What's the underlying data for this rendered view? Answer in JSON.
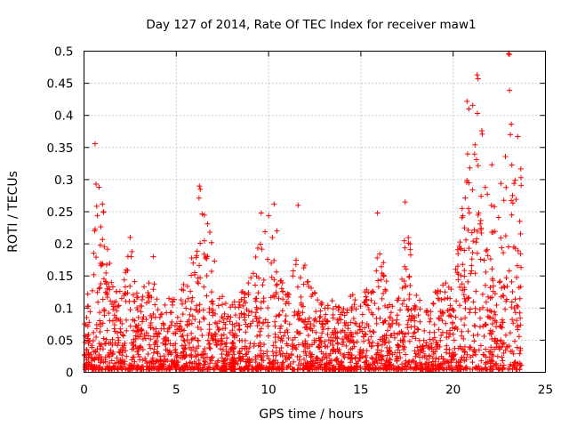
{
  "chart_data": {
    "type": "scatter",
    "title": "Day 127 of 2014, Rate Of TEC Index for receiver maw1",
    "xlabel": "GPS time / hours",
    "ylabel": "ROTI / TECUs",
    "xlim": [
      0,
      25
    ],
    "ylim": [
      0,
      0.5
    ],
    "x_ticks": [
      0,
      5,
      10,
      15,
      20,
      25
    ],
    "x_tick_labels": [
      "0",
      "5",
      "10",
      "15",
      "20",
      "25"
    ],
    "y_ticks": [
      0,
      0.05,
      0.1,
      0.15,
      0.2,
      0.25,
      0.3,
      0.35,
      0.4,
      0.45,
      0.5
    ],
    "y_tick_labels": [
      "0",
      "0.05",
      "0.1",
      "0.15",
      "0.2",
      "0.25",
      "0.3",
      "0.35",
      "0.4",
      "0.45",
      "0.5"
    ],
    "grid": true,
    "marker": "plus",
    "color": "#ff0000",
    "data_coverage": [
      0,
      23.7
    ],
    "envelope": [
      [
        0.0,
        0.1
      ],
      [
        0.5,
        0.18
      ],
      [
        0.7,
        0.3
      ],
      [
        1.0,
        0.26
      ],
      [
        1.5,
        0.14
      ],
      [
        2.0,
        0.12
      ],
      [
        2.5,
        0.2
      ],
      [
        3.0,
        0.12
      ],
      [
        3.5,
        0.14
      ],
      [
        4.0,
        0.13
      ],
      [
        4.5,
        0.12
      ],
      [
        5.0,
        0.11
      ],
      [
        5.5,
        0.14
      ],
      [
        6.0,
        0.2
      ],
      [
        6.3,
        0.29
      ],
      [
        6.7,
        0.24
      ],
      [
        7.0,
        0.18
      ],
      [
        7.5,
        0.12
      ],
      [
        8.0,
        0.1
      ],
      [
        8.5,
        0.12
      ],
      [
        9.0,
        0.14
      ],
      [
        9.5,
        0.2
      ],
      [
        10.0,
        0.25
      ],
      [
        10.5,
        0.17
      ],
      [
        11.0,
        0.12
      ],
      [
        11.5,
        0.22
      ],
      [
        12.0,
        0.16
      ],
      [
        12.5,
        0.12
      ],
      [
        13.0,
        0.1
      ],
      [
        13.5,
        0.11
      ],
      [
        14.0,
        0.1
      ],
      [
        14.5,
        0.12
      ],
      [
        15.0,
        0.11
      ],
      [
        15.5,
        0.14
      ],
      [
        16.0,
        0.22
      ],
      [
        16.5,
        0.12
      ],
      [
        17.0,
        0.11
      ],
      [
        17.5,
        0.24
      ],
      [
        18.0,
        0.12
      ],
      [
        18.5,
        0.1
      ],
      [
        19.0,
        0.12
      ],
      [
        19.5,
        0.14
      ],
      [
        20.0,
        0.14
      ],
      [
        20.5,
        0.26
      ],
      [
        21.0,
        0.42
      ],
      [
        21.3,
        0.46
      ],
      [
        21.8,
        0.3
      ],
      [
        22.2,
        0.25
      ],
      [
        22.6,
        0.3
      ],
      [
        23.0,
        0.5
      ],
      [
        23.4,
        0.35
      ],
      [
        23.7,
        0.33
      ]
    ],
    "outliers": [
      [
        0.6,
        0.356
      ],
      [
        0.65,
        0.293
      ],
      [
        1.0,
        0.262
      ],
      [
        1.05,
        0.25
      ],
      [
        2.5,
        0.21
      ],
      [
        2.55,
        0.18
      ],
      [
        3.75,
        0.18
      ],
      [
        6.25,
        0.29
      ],
      [
        6.3,
        0.285
      ],
      [
        9.6,
        0.248
      ],
      [
        10.3,
        0.262
      ],
      [
        10.45,
        0.22
      ],
      [
        11.6,
        0.26
      ],
      [
        15.9,
        0.248
      ],
      [
        17.4,
        0.265
      ],
      [
        20.75,
        0.422
      ],
      [
        20.85,
        0.41
      ],
      [
        21.3,
        0.463
      ],
      [
        21.35,
        0.457
      ],
      [
        21.55,
        0.376
      ],
      [
        22.1,
        0.323
      ],
      [
        23.0,
        0.496
      ],
      [
        23.05,
        0.495
      ],
      [
        23.1,
        0.37
      ],
      [
        23.5,
        0.367
      ]
    ]
  }
}
